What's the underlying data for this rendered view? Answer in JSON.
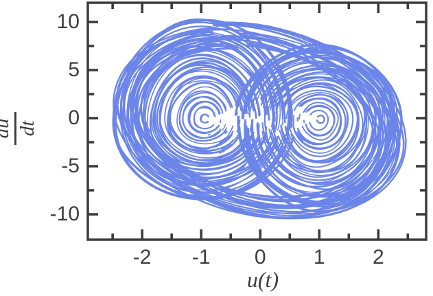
{
  "figure": {
    "title": "",
    "xlabel": "u(t)",
    "ylabel_numerator": "du",
    "ylabel_denominator": "dt"
  },
  "chart_data": {
    "type": "line",
    "subtype": "phase-portrait",
    "description": "Chaotic double-scroll-type attractor: trajectory u(t) vs du/dt spiraling around two foci with dense nearly-closed loops, ragged re-injection combs near each focus, and large outer loops encircling both lobes.",
    "title": "",
    "xlabel": "u(t)",
    "ylabel": "du/dt",
    "xlim": [
      -2.92,
      2.81
    ],
    "ylim": [
      -12.64,
      12.0
    ],
    "x_major_ticks": [
      -2,
      -1,
      0,
      1,
      2
    ],
    "x_tick_labels": [
      "-2",
      "-1",
      "0",
      "1",
      "2"
    ],
    "x_minor_step": 0.5,
    "y_major_ticks": [
      -10,
      -5,
      0,
      5,
      10
    ],
    "y_tick_labels": [
      "-10",
      "-5",
      "0",
      "5",
      "10"
    ],
    "y_minor_step": 2.5,
    "grid": false,
    "legend": null,
    "ticks_direction": "in",
    "frame": "box",
    "curve_color": "#6B85E8",
    "axis_color": "#3b3b3b",
    "label_color": "#3d3d3d",
    "foci": [
      [
        -0.95,
        -0.1
      ],
      [
        1.0,
        -0.12
      ]
    ],
    "left_lobe_x_extent": [
      -2.45,
      0.6
    ],
    "right_lobe_x_extent": [
      -0.32,
      2.33
    ],
    "y_extent": [
      -10.5,
      10.2
    ],
    "render_model": {
      "seed": 11,
      "points_per_loop": 72,
      "lobes": [
        {
          "name": "left-well-spiral",
          "cx": -0.95,
          "cy": -0.1,
          "cyDrift": 0.0,
          "rxMin": 0.07,
          "rxMax": 1.5,
          "aspectTop": 6.9,
          "aspectBottom": 5.4,
          "shear": 0.0,
          "bands": 24,
          "loopsPerBandMax": 3,
          "gapDeg": -10,
          "gapSpreadMaxDeg": 30,
          "gapSpreadMinDeg": 3,
          "combCount": 26,
          "combAngleDeg": [
            -75,
            -5
          ]
        },
        {
          "name": "right-well-spiral",
          "cx": 1.0,
          "cy": -0.12,
          "cyDrift": -0.2,
          "rxMin": 0.065,
          "rxMax": 1.3,
          "aspectTop": 5.6,
          "aspectBottom": 6.8,
          "shear": 0.0,
          "bands": 22,
          "loopsPerBandMax": 3,
          "gapDeg": 175,
          "gapSpreadMaxDeg": 30,
          "gapSpreadMinDeg": 3,
          "combCount": 24,
          "combAngleDeg": [
            135,
            235
          ]
        },
        {
          "name": "outer-cross-loops",
          "cx": -0.05,
          "cy": -0.45,
          "cyDrift": 0.0,
          "rxMin": 1.85,
          "rxMax": 2.4,
          "aspectTop": 4.3,
          "aspectBottom": 4.2,
          "shear": -0.55,
          "bands": 9,
          "loopsPerBandMax": 3,
          "gapDeg": 90,
          "gapSpreadMaxDeg": 2,
          "gapSpreadMinDeg": 1,
          "combCount": 0,
          "combAngleDeg": [
            0,
            0
          ]
        }
      ]
    }
  }
}
